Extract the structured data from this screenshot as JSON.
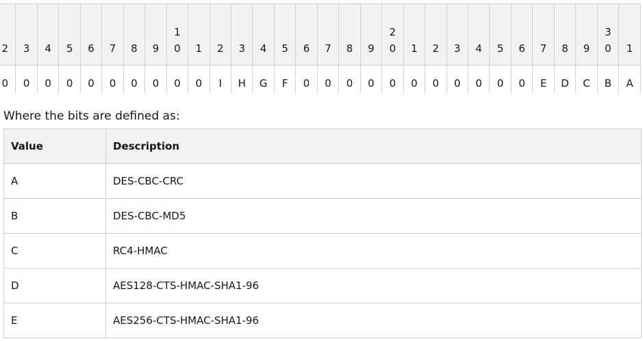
{
  "bit_table": {
    "header": [
      "2",
      "3",
      "4",
      "5",
      "6",
      "7",
      "8",
      "9",
      "10",
      "1",
      "2",
      "3",
      "4",
      "5",
      "6",
      "7",
      "8",
      "9",
      "20",
      "1",
      "2",
      "3",
      "4",
      "5",
      "6",
      "7",
      "8",
      "9",
      "30",
      "1"
    ],
    "row": [
      "0",
      "0",
      "0",
      "0",
      "0",
      "0",
      "0",
      "0",
      "0",
      "0",
      "I",
      "H",
      "G",
      "F",
      "0",
      "0",
      "0",
      "0",
      "0",
      "0",
      "0",
      "0",
      "0",
      "0",
      "0",
      "E",
      "D",
      "C",
      "B",
      "A"
    ]
  },
  "caption": "Where the bits are defined as:",
  "definitions": {
    "columns": [
      "Value",
      "Description"
    ],
    "rows": [
      [
        "A",
        "DES-CBC-CRC"
      ],
      [
        "B",
        "DES-CBC-MD5"
      ],
      [
        "C",
        "RC4-HMAC"
      ],
      [
        "D",
        "AES128-CTS-HMAC-SHA1-96"
      ],
      [
        "E",
        "AES256-CTS-HMAC-SHA1-96"
      ]
    ]
  }
}
